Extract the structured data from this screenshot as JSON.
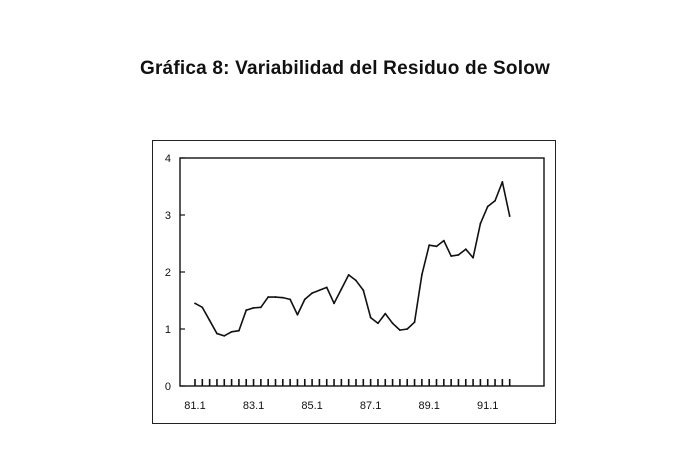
{
  "title": "Gráfica 8: Variabilidad del Residuo de Solow",
  "chart_data": {
    "type": "line",
    "title": "Gráfica 8: Variabilidad del Residuo de Solow",
    "xlabel": "",
    "ylabel": "",
    "ylim": [
      0,
      4
    ],
    "yticks": [
      0,
      1,
      2,
      3,
      4
    ],
    "x_tick_labels": [
      "81.1",
      "83.1",
      "85.1",
      "87.1",
      "89.1",
      "91.1"
    ],
    "x_tick_quarters": [
      0,
      8,
      16,
      24,
      32,
      40
    ],
    "x_range_quarters": [
      0,
      44
    ],
    "grid": false,
    "legend": "none",
    "line_color": "#111111",
    "series": [
      {
        "values": [
          1.45,
          1.38,
          1.15,
          0.92,
          0.88,
          0.95,
          0.97,
          1.33,
          1.37,
          1.38,
          1.56,
          1.56,
          1.55,
          1.52,
          1.25,
          1.52,
          1.63,
          1.68,
          1.73,
          1.45,
          1.7,
          1.95,
          1.85,
          1.68,
          1.2,
          1.1,
          1.27,
          1.1,
          0.98,
          1.0,
          1.12,
          1.95,
          2.47,
          2.45,
          2.55,
          2.28,
          2.3,
          2.4,
          2.25,
          2.85,
          3.15,
          3.25,
          3.58,
          2.98
        ]
      }
    ]
  }
}
